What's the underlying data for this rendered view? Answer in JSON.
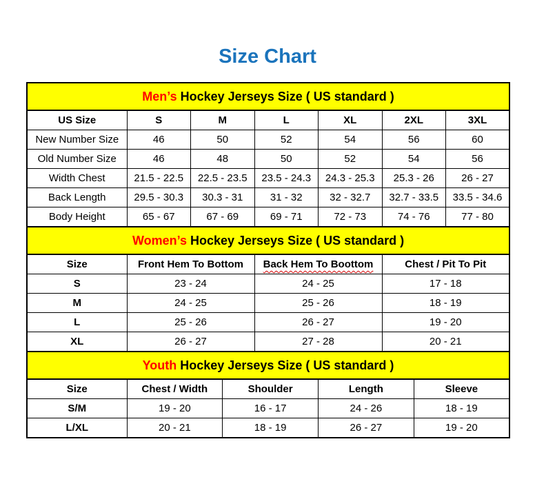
{
  "page": {
    "title": "Size Chart"
  },
  "colors": {
    "title_blue": "#1B74BC",
    "band_yellow": "#FFFF00",
    "highlight_red": "#FF0000",
    "border_black": "#000000",
    "squiggle_red": "#D40000"
  },
  "sections": [
    {
      "id": "mens",
      "band": {
        "highlight": "Men’s",
        "rest": " Hockey Jerseys Size ( US standard )"
      },
      "bold_row_labels": false,
      "columns": [
        {
          "label": "US Size"
        },
        {
          "label": "S"
        },
        {
          "label": "M"
        },
        {
          "label": "L"
        },
        {
          "label": "XL"
        },
        {
          "label": "2XL"
        },
        {
          "label": "3XL"
        }
      ],
      "rows": [
        {
          "label": "New Number Size",
          "values": [
            "46",
            "50",
            "52",
            "54",
            "56",
            "60"
          ]
        },
        {
          "label": "Old Number Size",
          "values": [
            "46",
            "48",
            "50",
            "52",
            "54",
            "56"
          ]
        },
        {
          "label": "Width Chest",
          "values": [
            "21.5 - 22.5",
            "22.5 - 23.5",
            "23.5 - 24.3",
            "24.3 - 25.3",
            "25.3 - 26",
            "26 - 27"
          ]
        },
        {
          "label": "Back Length",
          "values": [
            "29.5 - 30.3",
            "30.3 - 31",
            "31 - 32",
            "32 - 32.7",
            "32.7 - 33.5",
            "33.5 - 34.6"
          ]
        },
        {
          "label": "Body Height",
          "values": [
            "65 - 67",
            "67 - 69",
            "69 - 71",
            "72 - 73",
            "74 - 76",
            "77 - 80"
          ]
        }
      ]
    },
    {
      "id": "womens",
      "band": {
        "highlight": "Women’s",
        "rest": " Hockey Jerseys Size ( US standard )"
      },
      "bold_row_labels": true,
      "columns": [
        {
          "label": "Size"
        },
        {
          "label": "Front Hem To Bottom"
        },
        {
          "label": "Back Hem To Boottom",
          "squiggle": true
        },
        {
          "label": "Chest / Pit To Pit"
        }
      ],
      "rows": [
        {
          "label": "S",
          "values": [
            "23 - 24",
            "24 - 25",
            "17 - 18"
          ]
        },
        {
          "label": "M",
          "values": [
            "24 - 25",
            "25 - 26",
            "18 - 19"
          ]
        },
        {
          "label": "L",
          "values": [
            "25 - 26",
            "26 - 27",
            "19 - 20"
          ]
        },
        {
          "label": "XL",
          "values": [
            "26 - 27",
            "27 - 28",
            "20 - 21"
          ]
        }
      ]
    },
    {
      "id": "youth",
      "band": {
        "highlight": "Youth",
        "rest": " Hockey Jerseys Size ( US standard )"
      },
      "bold_row_labels": true,
      "columns": [
        {
          "label": "Size"
        },
        {
          "label": "Chest / Width"
        },
        {
          "label": "Shoulder"
        },
        {
          "label": "Length"
        },
        {
          "label": "Sleeve"
        }
      ],
      "rows": [
        {
          "label": "S/M",
          "values": [
            "19 - 20",
            "16 - 17",
            "24 - 26",
            "18 - 19"
          ]
        },
        {
          "label": "L/XL",
          "values": [
            "20 - 21",
            "18 - 19",
            "26 - 27",
            "19 - 20"
          ]
        }
      ]
    }
  ]
}
